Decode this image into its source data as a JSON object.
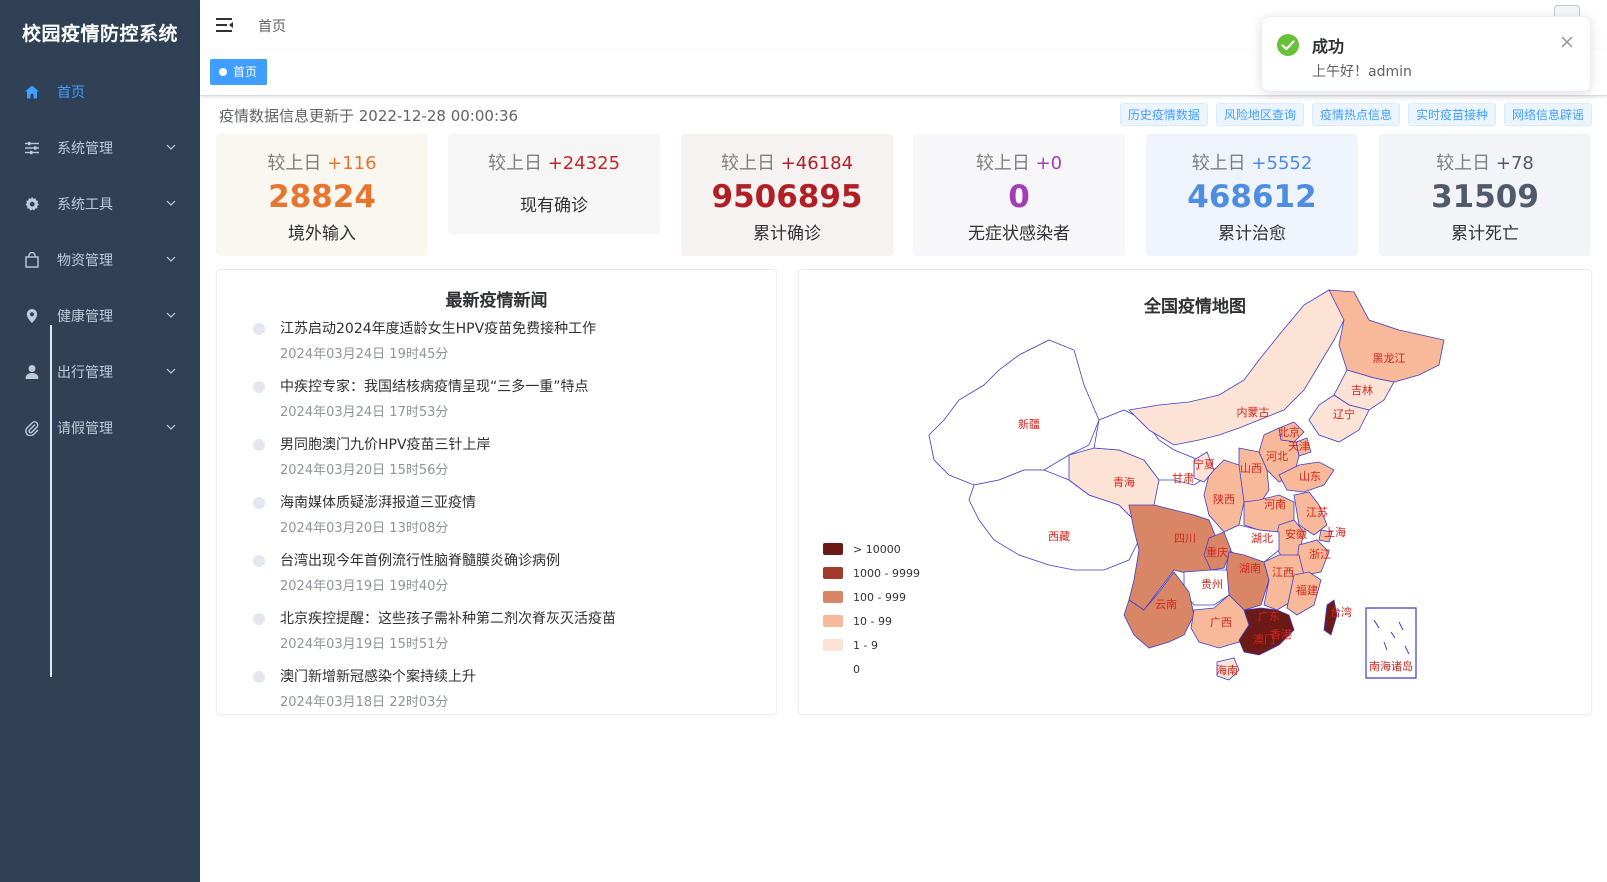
{
  "app": {
    "title": "校园疫情防控系统"
  },
  "sidebar": {
    "items": [
      {
        "label": "首页",
        "icon": "home-icon",
        "active": true
      },
      {
        "label": "系统管理",
        "icon": "sliders-icon"
      },
      {
        "label": "系统工具",
        "icon": "gear-icon"
      },
      {
        "label": "物资管理",
        "icon": "bag-icon"
      },
      {
        "label": "健康管理",
        "icon": "location-pin-icon"
      },
      {
        "label": "出行管理",
        "icon": "user-icon"
      },
      {
        "label": "请假管理",
        "icon": "paperclip-icon"
      }
    ]
  },
  "header": {
    "breadcrumb": "首页"
  },
  "tags": {
    "active": "首页"
  },
  "toast": {
    "title": "成功",
    "message": "上午好！admin"
  },
  "update": {
    "text": "疫情数据信息更新于 2022-12-28 00:00:36"
  },
  "links": [
    "历史疫情数据",
    "风险地区查询",
    "疫情热点信息",
    "实时疫苗接种",
    "网络信息辟谣"
  ],
  "stats": [
    {
      "compare_prefix": "较上日",
      "delta": "+116",
      "value": "28824",
      "label": "境外输入",
      "color": "#e6762f",
      "delta_color": "#e6762f",
      "bg": "#faf7f1"
    },
    {
      "compare_prefix": "较上日",
      "delta": "+24325",
      "value": "",
      "label": "现有确诊",
      "color": "#c1272d",
      "delta_color": "#c1272d",
      "bg": "#f6f6f6"
    },
    {
      "compare_prefix": "较上日",
      "delta": "+46184",
      "value": "9506895",
      "label": "累计确诊",
      "color": "#b01f24",
      "delta_color": "#b01f24",
      "bg": "#f7f2f2"
    },
    {
      "compare_prefix": "较上日",
      "delta": "+0",
      "value": "0",
      "label": "无症状感染者",
      "color": "#a43db5",
      "delta_color": "#a43db5",
      "bg": "#f7f6f8"
    },
    {
      "compare_prefix": "较上日",
      "delta": "+5552",
      "value": "468612",
      "label": "累计治愈",
      "color": "#4e8ee0",
      "delta_color": "#4e8ee0",
      "bg": "#eff3fb"
    },
    {
      "compare_prefix": "较上日",
      "delta": "+78",
      "value": "31509",
      "label": "累计死亡",
      "color": "#4f5b6b",
      "delta_color": "#4f5b6b",
      "bg": "#f2f4f7"
    }
  ],
  "news": {
    "title": "最新疫情新闻",
    "items": [
      {
        "title": "江苏启动2024年度适龄女生HPV疫苗免费接种工作",
        "time": "2024年03月24日 19时45分"
      },
      {
        "title": "中疾控专家：我国结核病疫情呈现“三多一重”特点",
        "time": "2024年03月24日 17时53分"
      },
      {
        "title": "男同胞澳门九价HPV疫苗三针上岸",
        "time": "2024年03月20日 15时56分"
      },
      {
        "title": "海南媒体质疑澎湃报道三亚疫情",
        "time": "2024年03月20日 13时08分"
      },
      {
        "title": "台湾出现今年首例流行性脑脊髓膜炎确诊病例",
        "time": "2024年03月19日 19时40分"
      },
      {
        "title": "北京疾控提醒：这些孩子需补种第二剂次脊灰灭活疫苗",
        "time": "2024年03月19日 15时51分"
      },
      {
        "title": "澳门新增新冠感染个案持续上升",
        "time": "2024年03月18日 22时03分"
      }
    ]
  },
  "map": {
    "title": "全国疫情地图",
    "legend": [
      {
        "label": "> 10000",
        "color": "#6b1a16"
      },
      {
        "label": "1000 - 9999",
        "color": "#a33a2c"
      },
      {
        "label": "100 - 999",
        "color": "#d98667"
      },
      {
        "label": "10 - 99",
        "color": "#f7b99a"
      },
      {
        "label": "1 - 9",
        "color": "#fde2d6"
      },
      {
        "label": "0",
        "color": "#ffffff"
      }
    ],
    "provinces": [
      "新疆",
      "西藏",
      "青海",
      "甘肃",
      "内蒙古",
      "黑龙江",
      "吉林",
      "辽宁",
      "北京",
      "天津",
      "河北",
      "山西",
      "陕西",
      "宁夏",
      "山东",
      "河南",
      "江苏",
      "安徽",
      "上海",
      "浙江",
      "湖北",
      "四川",
      "重庆",
      "湖南",
      "江西",
      "福建",
      "贵州",
      "云南",
      "广西",
      "广东",
      "香港",
      "澳门",
      "海南",
      "台湾",
      "南海诸岛"
    ]
  }
}
